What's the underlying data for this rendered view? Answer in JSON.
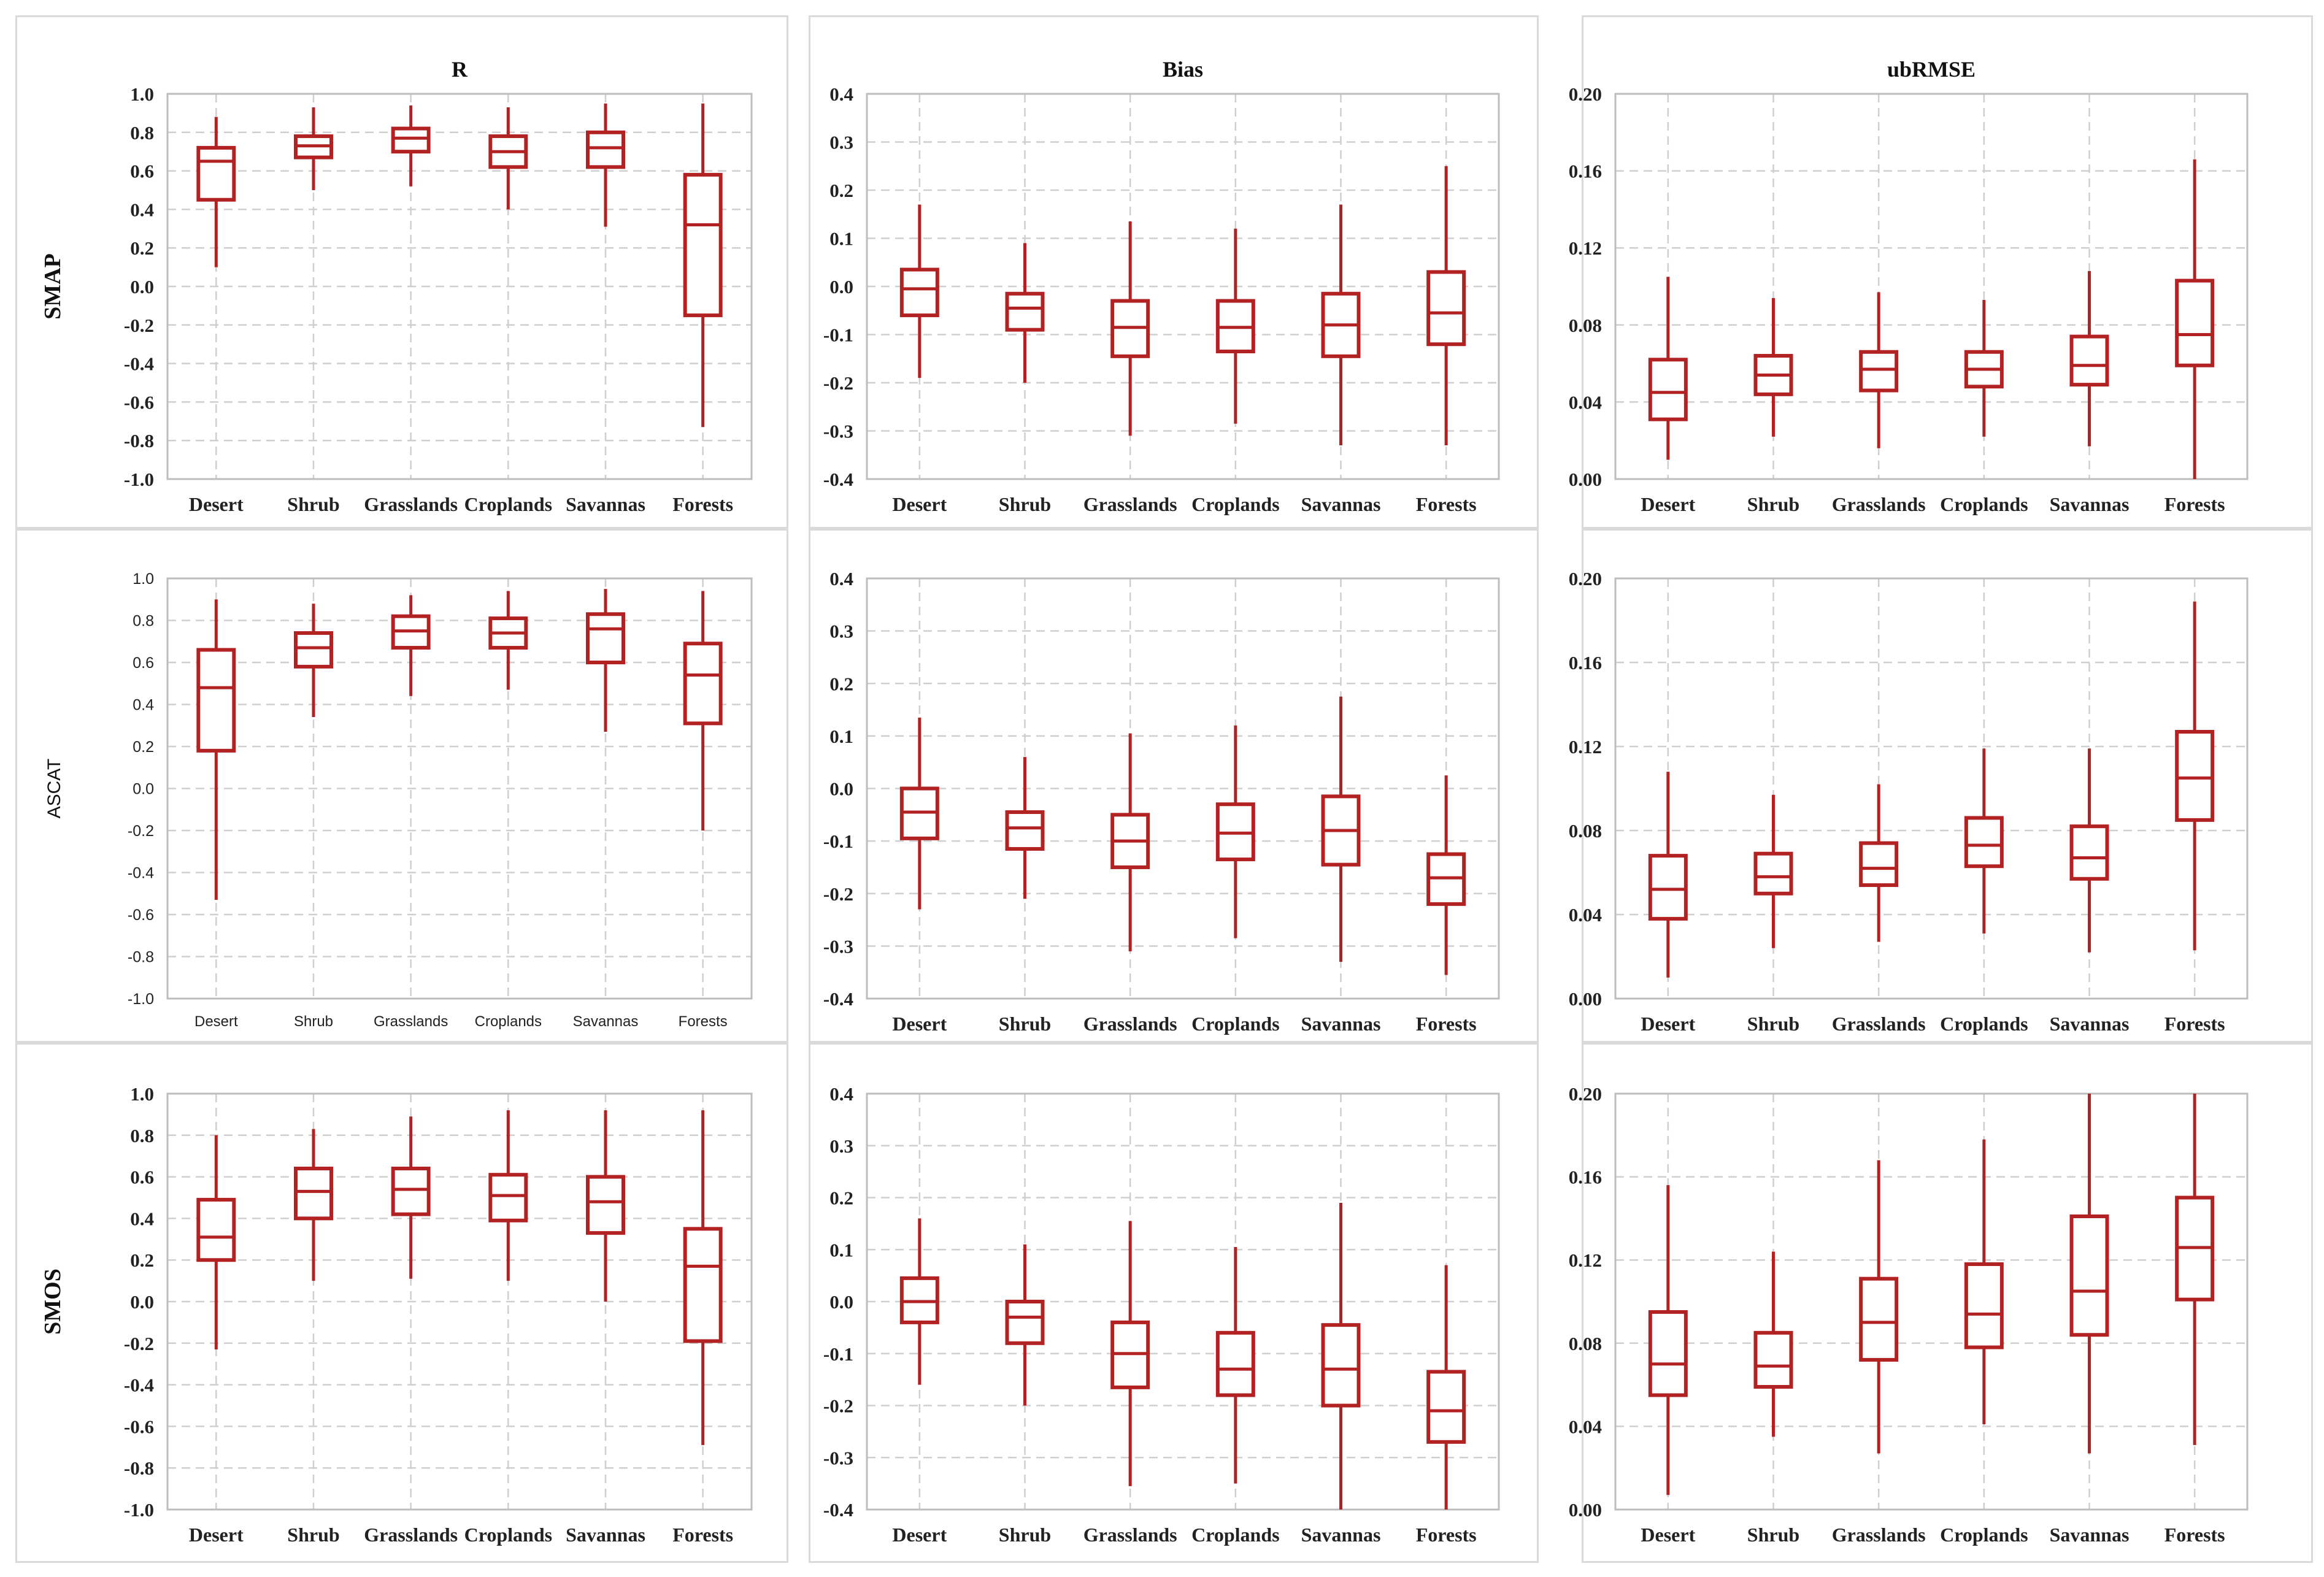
{
  "figure": {
    "columns": [
      "R",
      "Bias",
      "ubRMSE"
    ],
    "rows": [
      "SMAP",
      "ASCAT",
      "SMOS"
    ],
    "categories": [
      "Desert",
      "Shrub",
      "Grasslands",
      "Croplands",
      "Savannas",
      "Forests"
    ],
    "box_color": "#b22222",
    "grid_color": "#cfcfcf"
  },
  "chart_data": [
    {
      "type": "box",
      "row": "SMAP",
      "column": "R",
      "title": "R",
      "ylabel": "SMAP",
      "ylim": [
        -1.0,
        1.0
      ],
      "yticks": [
        "1.0",
        "0.8",
        "0.6",
        "0.4",
        "0.2",
        "0.0",
        "-0.2",
        "-0.4",
        "-0.6",
        "-0.8",
        "-1.0"
      ],
      "categories": [
        "Desert",
        "Shrub",
        "Grasslands",
        "Croplands",
        "Savannas",
        "Forests"
      ],
      "boxes": [
        {
          "min": 0.1,
          "q1": 0.45,
          "median": 0.65,
          "q3": 0.72,
          "max": 0.88
        },
        {
          "min": 0.5,
          "q1": 0.67,
          "median": 0.73,
          "q3": 0.78,
          "max": 0.93
        },
        {
          "min": 0.52,
          "q1": 0.7,
          "median": 0.77,
          "q3": 0.82,
          "max": 0.94
        },
        {
          "min": 0.4,
          "q1": 0.62,
          "median": 0.7,
          "q3": 0.78,
          "max": 0.93
        },
        {
          "min": 0.31,
          "q1": 0.62,
          "median": 0.72,
          "q3": 0.8,
          "max": 0.95
        },
        {
          "min": -0.73,
          "q1": -0.15,
          "median": 0.32,
          "q3": 0.58,
          "max": 0.95
        }
      ]
    },
    {
      "type": "box",
      "row": "SMAP",
      "column": "Bias",
      "title": "Bias",
      "ylabel": "",
      "ylim": [
        -0.4,
        0.4
      ],
      "yticks": [
        "0.4",
        "0.3",
        "0.2",
        "0.1",
        "0.0",
        "-0.1",
        "-0.2",
        "-0.3",
        "-0.4"
      ],
      "categories": [
        "Desert",
        "Shrub",
        "Grasslands",
        "Croplands",
        "Savannas",
        "Forests"
      ],
      "boxes": [
        {
          "min": -0.19,
          "q1": -0.06,
          "median": -0.005,
          "q3": 0.035,
          "max": 0.17
        },
        {
          "min": -0.2,
          "q1": -0.09,
          "median": -0.045,
          "q3": -0.015,
          "max": 0.09
        },
        {
          "min": -0.31,
          "q1": -0.145,
          "median": -0.085,
          "q3": -0.03,
          "max": 0.135
        },
        {
          "min": -0.285,
          "q1": -0.135,
          "median": -0.085,
          "q3": -0.03,
          "max": 0.12
        },
        {
          "min": -0.33,
          "q1": -0.145,
          "median": -0.08,
          "q3": -0.015,
          "max": 0.17
        },
        {
          "min": -0.33,
          "q1": -0.12,
          "median": -0.055,
          "q3": 0.03,
          "max": 0.25
        }
      ]
    },
    {
      "type": "box",
      "row": "SMAP",
      "column": "ubRMSE",
      "title": "ubRMSE",
      "ylabel": "",
      "ylim": [
        0.0,
        0.2
      ],
      "yticks": [
        "0.20",
        "0.16",
        "0.12",
        "0.08",
        "0.04",
        "0.00"
      ],
      "categories": [
        "Desert",
        "Shrub",
        "Grasslands",
        "Croplands",
        "Savannas",
        "Forests"
      ],
      "boxes": [
        {
          "min": 0.01,
          "q1": 0.031,
          "median": 0.045,
          "q3": 0.062,
          "max": 0.105
        },
        {
          "min": 0.022,
          "q1": 0.044,
          "median": 0.054,
          "q3": 0.064,
          "max": 0.094
        },
        {
          "min": 0.016,
          "q1": 0.046,
          "median": 0.057,
          "q3": 0.066,
          "max": 0.097
        },
        {
          "min": 0.022,
          "q1": 0.048,
          "median": 0.057,
          "q3": 0.066,
          "max": 0.093
        },
        {
          "min": 0.017,
          "q1": 0.049,
          "median": 0.059,
          "q3": 0.074,
          "max": 0.108
        },
        {
          "min": 0.0,
          "q1": 0.059,
          "median": 0.075,
          "q3": 0.103,
          "max": 0.166
        }
      ]
    },
    {
      "type": "box",
      "row": "ASCAT",
      "column": "R",
      "title": "",
      "ylabel": "ASCAT",
      "ylim": [
        -1.0,
        1.0
      ],
      "yticks": [
        "1.0",
        "0.8",
        "0.6",
        "0.4",
        "0.2",
        "0.0",
        "-0.2",
        "-0.4",
        "-0.6",
        "-0.8",
        "-1.0"
      ],
      "categories": [
        "Desert",
        "Shrub",
        "Grasslands",
        "Croplands",
        "Savannas",
        "Forests"
      ],
      "boxes": [
        {
          "min": -0.53,
          "q1": 0.18,
          "median": 0.48,
          "q3": 0.66,
          "max": 0.9
        },
        {
          "min": 0.34,
          "q1": 0.58,
          "median": 0.67,
          "q3": 0.74,
          "max": 0.88
        },
        {
          "min": 0.44,
          "q1": 0.67,
          "median": 0.75,
          "q3": 0.82,
          "max": 0.92
        },
        {
          "min": 0.47,
          "q1": 0.67,
          "median": 0.74,
          "q3": 0.81,
          "max": 0.94
        },
        {
          "min": 0.27,
          "q1": 0.6,
          "median": 0.76,
          "q3": 0.83,
          "max": 0.95
        },
        {
          "min": -0.2,
          "q1": 0.31,
          "median": 0.54,
          "q3": 0.69,
          "max": 0.94
        }
      ]
    },
    {
      "type": "box",
      "row": "ASCAT",
      "column": "Bias",
      "title": "",
      "ylabel": "",
      "ylim": [
        -0.4,
        0.4
      ],
      "yticks": [
        "0.4",
        "0.3",
        "0.2",
        "0.1",
        "0.0",
        "-0.1",
        "-0.2",
        "-0.3",
        "-0.4"
      ],
      "categories": [
        "Desert",
        "Shrub",
        "Grasslands",
        "Croplands",
        "Savannas",
        "Forests"
      ],
      "boxes": [
        {
          "min": -0.23,
          "q1": -0.095,
          "median": -0.045,
          "q3": 0.0,
          "max": 0.135
        },
        {
          "min": -0.21,
          "q1": -0.115,
          "median": -0.075,
          "q3": -0.045,
          "max": 0.06
        },
        {
          "min": -0.31,
          "q1": -0.15,
          "median": -0.1,
          "q3": -0.05,
          "max": 0.105
        },
        {
          "min": -0.285,
          "q1": -0.135,
          "median": -0.085,
          "q3": -0.03,
          "max": 0.12
        },
        {
          "min": -0.33,
          "q1": -0.145,
          "median": -0.08,
          "q3": -0.015,
          "max": 0.175
        },
        {
          "min": -0.355,
          "q1": -0.22,
          "median": -0.17,
          "q3": -0.125,
          "max": 0.025
        }
      ]
    },
    {
      "type": "box",
      "row": "ASCAT",
      "column": "ubRMSE",
      "title": "",
      "ylabel": "",
      "ylim": [
        0.0,
        0.2
      ],
      "yticks": [
        "0.20",
        "0.16",
        "0.12",
        "0.08",
        "0.04",
        "0.00"
      ],
      "categories": [
        "Desert",
        "Shrub",
        "Grasslands",
        "Croplands",
        "Savannas",
        "Forests"
      ],
      "boxes": [
        {
          "min": 0.01,
          "q1": 0.038,
          "median": 0.052,
          "q3": 0.068,
          "max": 0.108
        },
        {
          "min": 0.024,
          "q1": 0.05,
          "median": 0.058,
          "q3": 0.069,
          "max": 0.097
        },
        {
          "min": 0.027,
          "q1": 0.054,
          "median": 0.062,
          "q3": 0.074,
          "max": 0.102
        },
        {
          "min": 0.031,
          "q1": 0.063,
          "median": 0.073,
          "q3": 0.086,
          "max": 0.119
        },
        {
          "min": 0.022,
          "q1": 0.057,
          "median": 0.067,
          "q3": 0.082,
          "max": 0.119
        },
        {
          "min": 0.023,
          "q1": 0.085,
          "median": 0.105,
          "q3": 0.127,
          "max": 0.189
        }
      ]
    },
    {
      "type": "box",
      "row": "SMOS",
      "column": "R",
      "title": "",
      "ylabel": "SMOS",
      "ylim": [
        -1.0,
        1.0
      ],
      "yticks": [
        "1.0",
        "0.8",
        "0.6",
        "0.4",
        "0.2",
        "0.0",
        "-0.2",
        "-0.4",
        "-0.6",
        "-0.8",
        "-1.0"
      ],
      "categories": [
        "Desert",
        "Shrub",
        "Grasslands",
        "Croplands",
        "Savannas",
        "Forests"
      ],
      "boxes": [
        {
          "min": -0.23,
          "q1": 0.2,
          "median": 0.31,
          "q3": 0.49,
          "max": 0.8
        },
        {
          "min": 0.1,
          "q1": 0.4,
          "median": 0.53,
          "q3": 0.64,
          "max": 0.83
        },
        {
          "min": 0.11,
          "q1": 0.42,
          "median": 0.54,
          "q3": 0.64,
          "max": 0.89
        },
        {
          "min": 0.1,
          "q1": 0.39,
          "median": 0.51,
          "q3": 0.61,
          "max": 0.92
        },
        {
          "min": 0.0,
          "q1": 0.33,
          "median": 0.48,
          "q3": 0.6,
          "max": 0.92
        },
        {
          "min": -0.69,
          "q1": -0.19,
          "median": 0.17,
          "q3": 0.35,
          "max": 0.92
        }
      ]
    },
    {
      "type": "box",
      "row": "SMOS",
      "column": "Bias",
      "title": "",
      "ylabel": "",
      "ylim": [
        -0.4,
        0.4
      ],
      "yticks": [
        "0.4",
        "0.3",
        "0.2",
        "0.1",
        "0.0",
        "-0.1",
        "-0.2",
        "-0.3",
        "-0.4"
      ],
      "categories": [
        "Desert",
        "Shrub",
        "Grasslands",
        "Croplands",
        "Savannas",
        "Forests"
      ],
      "boxes": [
        {
          "min": -0.16,
          "q1": -0.04,
          "median": 0.0,
          "q3": 0.045,
          "max": 0.16
        },
        {
          "min": -0.2,
          "q1": -0.08,
          "median": -0.03,
          "q3": 0.0,
          "max": 0.11
        },
        {
          "min": -0.355,
          "q1": -0.165,
          "median": -0.1,
          "q3": -0.04,
          "max": 0.155
        },
        {
          "min": -0.35,
          "q1": -0.18,
          "median": -0.13,
          "q3": -0.06,
          "max": 0.105
        },
        {
          "min": -0.4,
          "q1": -0.2,
          "median": -0.13,
          "q3": -0.045,
          "max": 0.19
        },
        {
          "min": -0.4,
          "q1": -0.27,
          "median": -0.21,
          "q3": -0.135,
          "max": 0.07
        }
      ]
    },
    {
      "type": "box",
      "row": "SMOS",
      "column": "ubRMSE",
      "title": "",
      "ylabel": "",
      "ylim": [
        0.0,
        0.2
      ],
      "yticks": [
        "0.20",
        "0.16",
        "0.12",
        "0.08",
        "0.04",
        "0.00"
      ],
      "categories": [
        "Desert",
        "Shrub",
        "Grasslands",
        "Croplands",
        "Savannas",
        "Forests"
      ],
      "boxes": [
        {
          "min": 0.007,
          "q1": 0.055,
          "median": 0.07,
          "q3": 0.095,
          "max": 0.156
        },
        {
          "min": 0.035,
          "q1": 0.059,
          "median": 0.069,
          "q3": 0.085,
          "max": 0.124
        },
        {
          "min": 0.027,
          "q1": 0.072,
          "median": 0.09,
          "q3": 0.111,
          "max": 0.168
        },
        {
          "min": 0.041,
          "q1": 0.078,
          "median": 0.094,
          "q3": 0.118,
          "max": 0.178
        },
        {
          "min": 0.027,
          "q1": 0.084,
          "median": 0.105,
          "q3": 0.141,
          "max": 0.2
        },
        {
          "min": 0.031,
          "q1": 0.101,
          "median": 0.126,
          "q3": 0.15,
          "max": 0.2
        }
      ]
    }
  ]
}
